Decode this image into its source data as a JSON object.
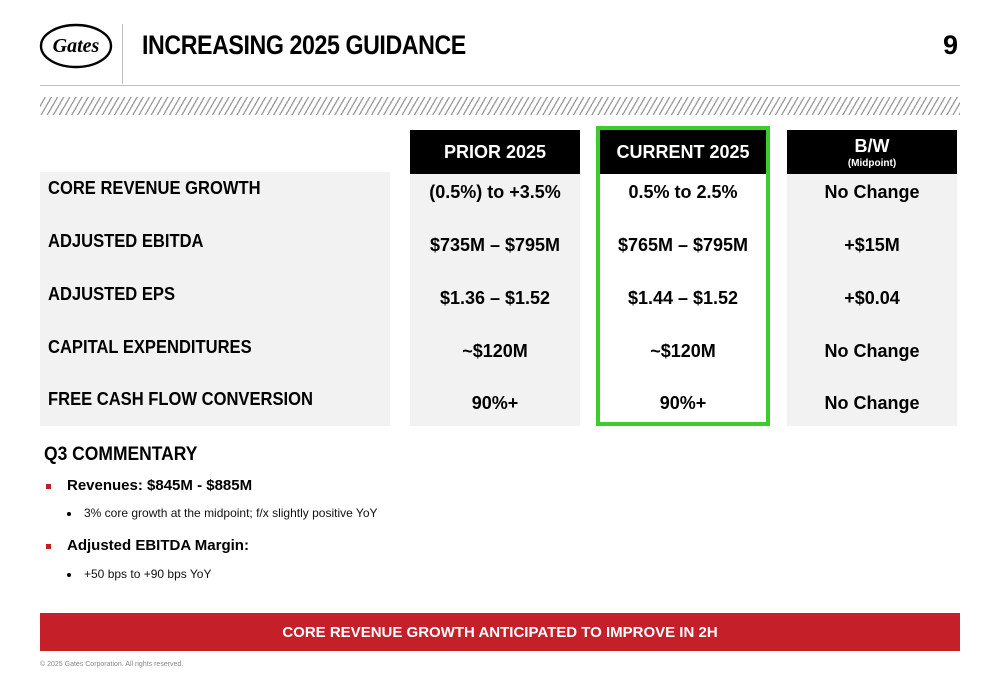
{
  "header": {
    "logo_text": "Gates",
    "title": "INCREASING 2025 GUIDANCE",
    "page_number": "9"
  },
  "table": {
    "row_labels": [
      "CORE REVENUE GROWTH",
      "ADJUSTED EBITDA",
      "ADJUSTED EPS",
      "CAPITAL EXPENDITURES",
      "FREE CASH FLOW CONVERSION"
    ],
    "columns": [
      {
        "header": "PRIOR 2025",
        "subheader": "",
        "values": [
          "(0.5%) to +3.5%",
          "$735M – $795M",
          "$1.36 – $1.52",
          "~$120M",
          "90%+"
        ]
      },
      {
        "header": "CURRENT 2025",
        "subheader": "",
        "values": [
          "0.5% to 2.5%",
          "$765M – $795M",
          "$1.44 – $1.52",
          "~$120M",
          "90%+"
        ]
      },
      {
        "header": "B/W",
        "subheader": "(Midpoint)",
        "values": [
          "No Change",
          "+$15M",
          "+$0.04",
          "No Change",
          "No Change"
        ]
      }
    ],
    "highlight_color": "#3ccc2b"
  },
  "commentary": {
    "title": "Q3 COMMENTARY",
    "items": [
      {
        "text": "Revenues: $845M - $885M",
        "sub": "3% core growth at the midpoint; f/x slightly positive YoY"
      },
      {
        "text": "Adjusted EBITDA Margin:",
        "sub": "+50 bps to +90 bps YoY"
      }
    ]
  },
  "banner": {
    "text": "CORE REVENUE GROWTH ANTICIPATED TO IMPROVE IN 2H",
    "color": "#c5202a"
  },
  "footer": {
    "text": "© 2025 Gates Corporation. All rights reserved."
  }
}
